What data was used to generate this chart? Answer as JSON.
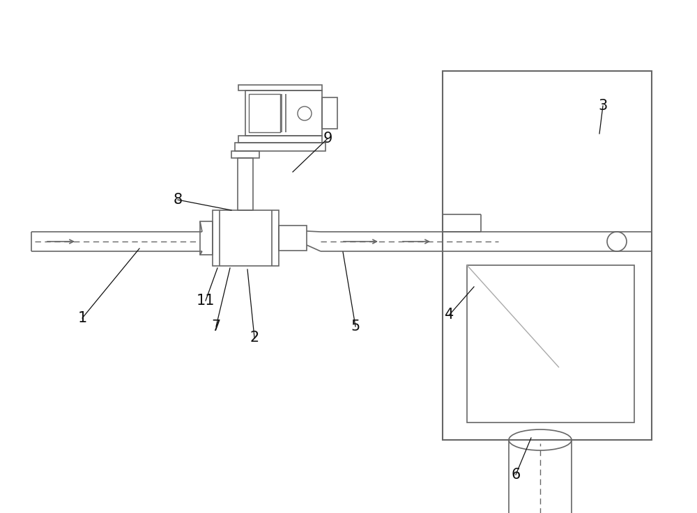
{
  "bg_color": "#ffffff",
  "line_color": "#aaaaaa",
  "dark_line": "#666666",
  "label_color": "#111111",
  "fig_width": 10.0,
  "fig_height": 7.37,
  "dpi": 100
}
